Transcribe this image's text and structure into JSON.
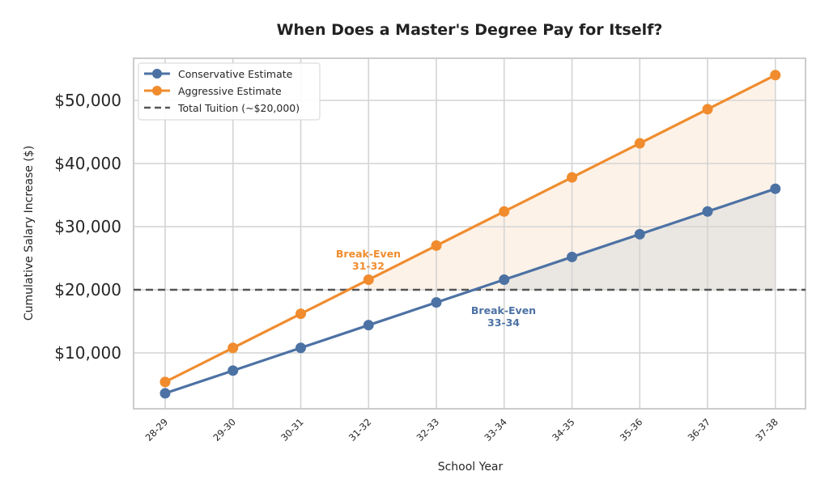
{
  "chart_data": {
    "type": "line",
    "title": "When Does a Master's Degree Pay for Itself?",
    "xlabel": "School Year",
    "ylabel": "Cumulative Salary Increase ($)",
    "categories": [
      "28-29",
      "29-30",
      "30-31",
      "31-32",
      "32-33",
      "33-34",
      "34-35",
      "35-36",
      "36-37",
      "37-38"
    ],
    "series": [
      {
        "name": "Conservative Estimate",
        "color": "#4c72a4",
        "values": [
          3600,
          7200,
          10800,
          14400,
          18000,
          21600,
          25200,
          28800,
          32400,
          36000
        ],
        "marker": "circle"
      },
      {
        "name": "Aggressive Estimate",
        "color": "#f08c2e",
        "values": [
          5400,
          10800,
          16200,
          21600,
          27000,
          32400,
          37800,
          43200,
          48600,
          54000
        ],
        "marker": "circle"
      }
    ],
    "reference_line": {
      "name": "Total Tuition (~$20,000)",
      "value": 20000,
      "style": "dashed",
      "color": "#555555"
    },
    "yticks": [
      10000,
      20000,
      30000,
      40000,
      50000
    ],
    "ytick_labels": [
      "$10,000",
      "$20,000",
      "$30,000",
      "$40,000",
      "$50,000"
    ],
    "ylim": [
      1000,
      56700
    ],
    "grid": true,
    "legend_position": "upper left",
    "annotations": [
      {
        "lines": [
          "Break-Even",
          "31-32"
        ],
        "color": "#f08c2e",
        "series": "Aggressive Estimate"
      },
      {
        "lines": [
          "Break-Even",
          "33-34"
        ],
        "color": "#4c72a4",
        "series": "Conservative Estimate"
      }
    ],
    "fills": [
      {
        "series": "Aggressive Estimate",
        "above": 20000,
        "color": "#fdf1e6"
      },
      {
        "series": "Conservative Estimate",
        "above": 20000,
        "color": "#e8e4e0"
      }
    ]
  }
}
